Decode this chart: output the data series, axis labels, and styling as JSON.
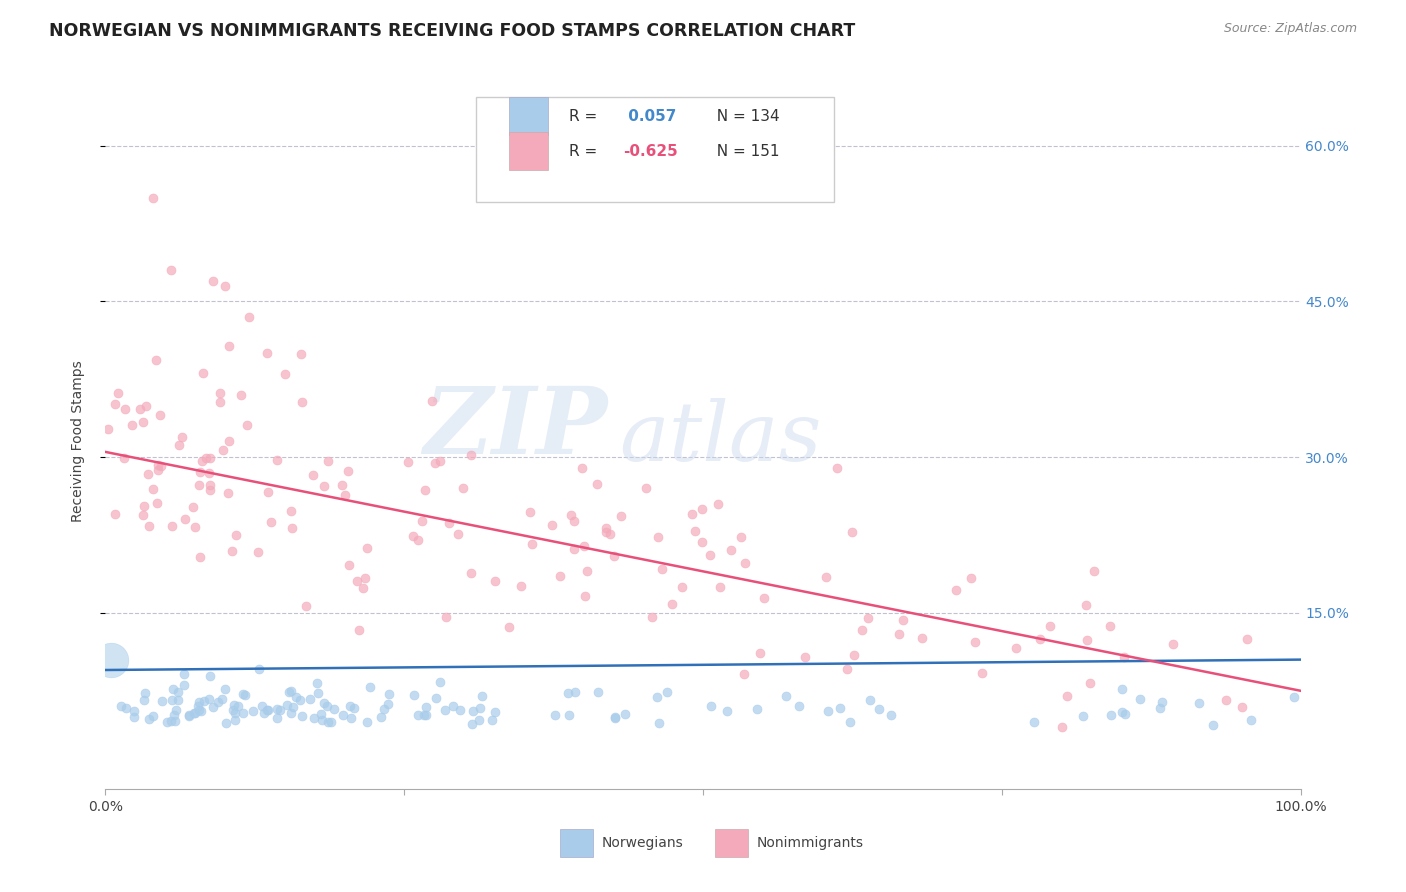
{
  "title": "NORWEGIAN VS NONIMMIGRANTS RECEIVING FOOD STAMPS CORRELATION CHART",
  "source_text": "Source: ZipAtlas.com",
  "ylabel": "Receiving Food Stamps",
  "xlim": [
    0.0,
    1.0
  ],
  "ylim": [
    -0.02,
    0.65
  ],
  "yticks_right": [
    0.15,
    0.3,
    0.45,
    0.6
  ],
  "ytick_labels_right": [
    "15.0%",
    "30.0%",
    "45.0%",
    "60.0%"
  ],
  "blue_R": 0.057,
  "blue_N": 134,
  "pink_R": -0.625,
  "pink_N": 151,
  "blue_color": "#A8CCEA",
  "pink_color": "#F4AABB",
  "blue_line_color": "#3070B8",
  "pink_line_color": "#E8507A",
  "right_tick_color": "#4488CC",
  "watermark_zip": "ZIP",
  "watermark_atlas": "atlas",
  "legend_label_blue": "Norwegians",
  "legend_label_pink": "Nonimmigrants",
  "title_fontsize": 12.5,
  "axis_label_fontsize": 10,
  "tick_label_fontsize": 10,
  "background_color": "#FFFFFF",
  "grid_color": "#BBBBCC",
  "blue_line_y0": 0.095,
  "blue_line_y1": 0.105,
  "pink_line_y0": 0.305,
  "pink_line_y1": 0.075
}
